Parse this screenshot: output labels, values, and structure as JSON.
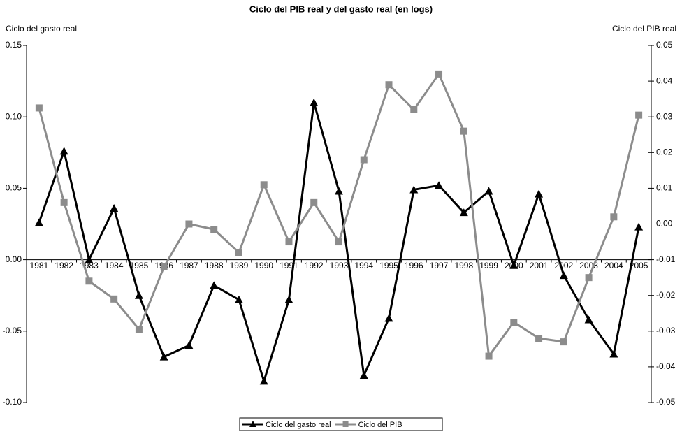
{
  "chart_data": {
    "type": "line",
    "title": "Ciclo del PIB real y del gasto real (en logs)",
    "ylabel": "Ciclo del gasto real",
    "y2label": "Ciclo del PIB real",
    "categories": [
      "1981",
      "1982",
      "1983",
      "1984",
      "1985",
      "1986",
      "1987",
      "1988",
      "1989",
      "1990",
      "1991",
      "1992",
      "1993",
      "1994",
      "1995",
      "1996",
      "1997",
      "1998",
      "1999",
      "2000",
      "2001",
      "2002",
      "2003",
      "2004",
      "2005"
    ],
    "series": [
      {
        "name": "Ciclo del gasto real",
        "color": "#000000",
        "marker": "triangle",
        "axis": "y",
        "values": [
          0.026,
          0.076,
          0.0,
          0.036,
          -0.025,
          -0.068,
          -0.06,
          -0.018,
          -0.028,
          -0.085,
          -0.028,
          0.11,
          0.048,
          -0.081,
          -0.041,
          0.049,
          0.052,
          0.033,
          0.048,
          -0.004,
          0.046,
          -0.011,
          -0.042,
          -0.066,
          0.023
        ]
      },
      {
        "name": "Ciclo del PIB",
        "color": "#8c8c8c",
        "marker": "square",
        "axis": "y2",
        "values": [
          0.0325,
          0.006,
          -0.016,
          -0.021,
          -0.0295,
          -0.012,
          0.0,
          -0.0015,
          -0.008,
          0.011,
          -0.005,
          0.006,
          -0.005,
          0.018,
          0.039,
          0.032,
          0.042,
          0.026,
          -0.037,
          -0.0275,
          -0.032,
          -0.033,
          -0.015,
          0.002,
          0.0305
        ]
      }
    ],
    "ylim": [
      -0.1,
      0.15
    ],
    "yticks": [
      {
        "value": -0.1,
        "label": "-0.10"
      },
      -0.05,
      {
        "value": 0,
        "label": "0.00"
      },
      0.05,
      {
        "value": 0.1,
        "label": "0.10"
      },
      0.15
    ],
    "y2lim": [
      -0.05,
      0.05
    ],
    "y2ticks": [
      -0.05,
      -0.04,
      -0.03,
      -0.02,
      -0.01,
      {
        "value": 0,
        "label": "0.00"
      },
      0.01,
      0.02,
      0.03,
      0.04,
      0.05
    ],
    "legend": "bottom"
  }
}
